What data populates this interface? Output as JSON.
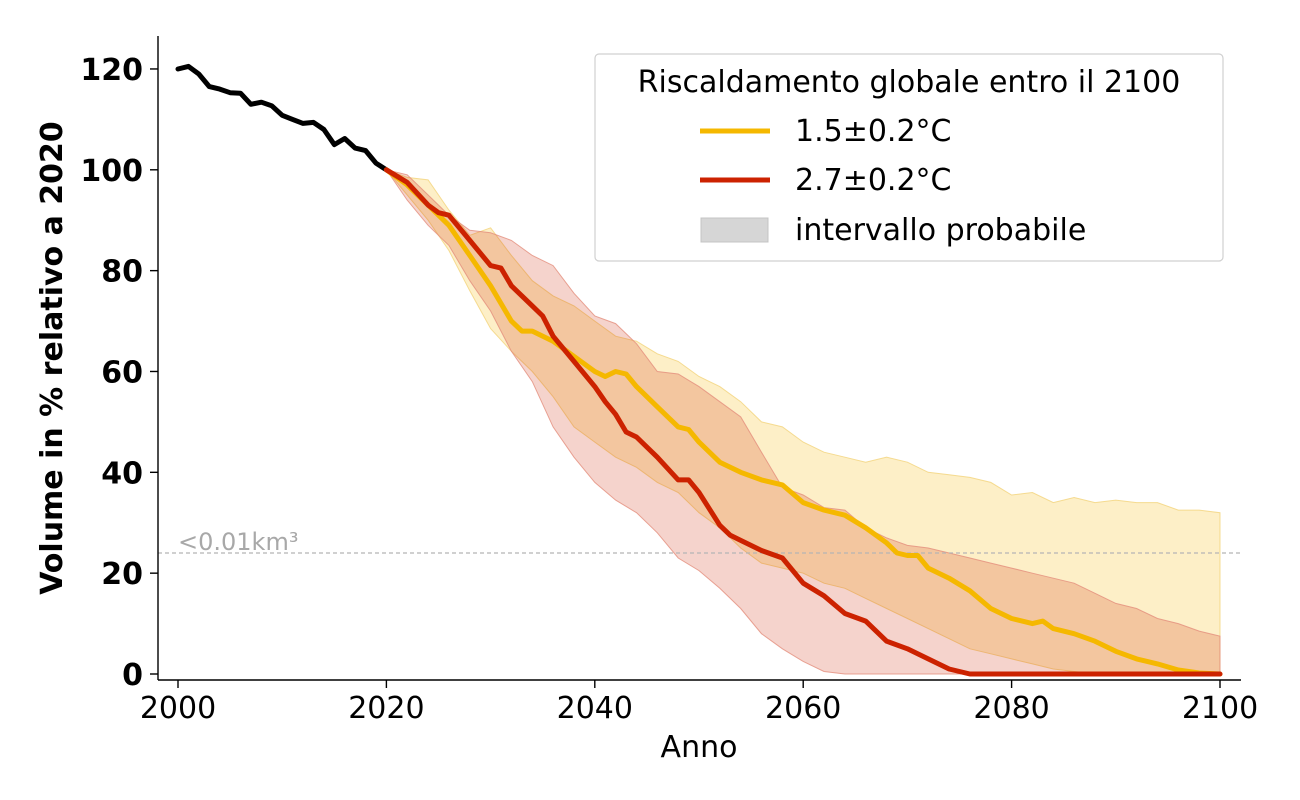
{
  "chart_data": {
    "type": "line",
    "xlabel": "Anno",
    "ylabel": "Volume in % relativo a 2020",
    "xlim": [
      2000,
      2100
    ],
    "ylim": [
      0,
      125
    ],
    "xticks": [
      2000,
      2020,
      2040,
      2060,
      2080,
      2100
    ],
    "yticks": [
      0,
      20,
      40,
      60,
      80,
      100,
      120
    ],
    "legend": {
      "title": "Riscaldamento globale entro il 2100",
      "placement": "top-right",
      "entries": [
        "1.5±0.2°C",
        "2.7±0.2°C",
        "intervallo probabile"
      ]
    },
    "threshold": {
      "y": 24,
      "label": "<0.01km³",
      "color": "#b5b5b5"
    },
    "colors": {
      "observed": "#000000",
      "ssp15": "#f5b800",
      "ssp27": "#cc2200",
      "range_legend": "#d6d6d6"
    },
    "observed": {
      "x": [
        2000,
        2001,
        2002,
        2003,
        2004,
        2005,
        2006,
        2007,
        2008,
        2009,
        2010,
        2011,
        2012,
        2013,
        2014,
        2015,
        2016,
        2017,
        2018,
        2019,
        2020
      ],
      "y": [
        120,
        120.5,
        119,
        116.5,
        116,
        115.3,
        115.2,
        113,
        113.4,
        112.7,
        110.8,
        110,
        109.2,
        109.4,
        108,
        105,
        106.2,
        104.3,
        103.8,
        101.3,
        100
      ]
    },
    "series": [
      {
        "name": "1.5±0.2°C",
        "x": [
          2020,
          2022,
          2024,
          2026,
          2028,
          2030,
          2032,
          2033,
          2034,
          2036,
          2038,
          2040,
          2041,
          2042,
          2043,
          2044,
          2046,
          2048,
          2049,
          2050,
          2052,
          2054,
          2056,
          2058,
          2060,
          2062,
          2064,
          2066,
          2068,
          2069,
          2070,
          2071,
          2072,
          2074,
          2076,
          2078,
          2080,
          2082,
          2083,
          2084,
          2086,
          2088,
          2090,
          2092,
          2094,
          2096,
          2098,
          2100
        ],
        "y": [
          100,
          97,
          93,
          89,
          83,
          77,
          70,
          68,
          68,
          66,
          63,
          60,
          59,
          60,
          59.5,
          57,
          53,
          49,
          48.5,
          46,
          42,
          40,
          38.5,
          37.5,
          34,
          32.5,
          31.5,
          29,
          26,
          24,
          23.5,
          23.5,
          21,
          19,
          16.5,
          13,
          11,
          10,
          10.5,
          9,
          8,
          6.5,
          4.5,
          3,
          2,
          0.8,
          0.2,
          0
        ]
      },
      {
        "name": "2.7±0.2°C",
        "x": [
          2020,
          2022,
          2024,
          2025,
          2026,
          2028,
          2030,
          2031,
          2032,
          2034,
          2035,
          2036,
          2038,
          2040,
          2041,
          2042,
          2043,
          2044,
          2046,
          2048,
          2049,
          2050,
          2052,
          2053,
          2054,
          2056,
          2058,
          2060,
          2062,
          2064,
          2066,
          2068,
          2070,
          2072,
          2074,
          2076,
          2080,
          2090,
          2100
        ],
        "y": [
          100,
          97.5,
          93,
          91.5,
          91,
          86,
          81,
          80.5,
          77,
          73,
          71,
          67,
          62,
          57,
          54,
          51.5,
          48,
          47,
          43,
          38.5,
          38.5,
          36,
          29.5,
          27.5,
          26.5,
          24.5,
          23,
          18,
          15.5,
          12,
          10.5,
          6.5,
          5,
          3,
          1,
          0,
          0,
          0,
          0
        ]
      }
    ],
    "ranges": [
      {
        "name": "1.5±0.2°C",
        "x": [
          2020,
          2022,
          2024,
          2026,
          2028,
          2030,
          2032,
          2034,
          2036,
          2038,
          2040,
          2042,
          2044,
          2046,
          2048,
          2050,
          2052,
          2054,
          2056,
          2058,
          2060,
          2062,
          2064,
          2066,
          2068,
          2070,
          2072,
          2074,
          2076,
          2078,
          2080,
          2082,
          2084,
          2086,
          2088,
          2090,
          2092,
          2094,
          2096,
          2098,
          2100
        ],
        "upper": [
          100,
          98.5,
          98,
          92,
          87,
          88.5,
          83,
          78,
          75,
          73,
          70,
          67,
          66,
          63.5,
          62,
          59,
          57,
          54,
          50,
          49,
          46,
          44,
          43,
          42,
          43,
          42,
          40,
          39.5,
          39,
          38,
          35.5,
          36,
          34,
          35,
          34,
          34.5,
          34,
          34,
          32.5,
          32.5,
          32
        ],
        "lower": [
          100,
          95,
          90,
          84,
          76,
          68.5,
          64,
          60,
          55,
          49,
          46,
          43,
          41,
          38,
          36,
          32,
          29,
          25,
          22,
          21,
          20,
          18,
          17,
          15,
          13,
          11,
          9,
          7,
          5,
          4,
          3,
          2,
          1,
          0.5,
          0,
          0,
          0,
          0,
          0,
          0,
          0
        ]
      },
      {
        "name": "2.7±0.2°C",
        "x": [
          2020,
          2022,
          2024,
          2026,
          2028,
          2030,
          2032,
          2034,
          2036,
          2038,
          2040,
          2042,
          2044,
          2046,
          2048,
          2050,
          2052,
          2054,
          2056,
          2058,
          2060,
          2062,
          2064,
          2066,
          2068,
          2070,
          2072,
          2074,
          2076,
          2078,
          2080,
          2082,
          2084,
          2086,
          2088,
          2090,
          2092,
          2094,
          2096,
          2098,
          2100
        ],
        "upper": [
          100,
          99,
          95,
          91,
          88,
          87.5,
          86,
          83,
          81,
          75.5,
          71,
          69.5,
          65.5,
          60,
          59.5,
          57,
          54,
          51,
          44,
          37,
          35.5,
          33,
          32.5,
          29,
          27,
          25.5,
          25,
          24,
          23,
          22,
          21,
          20,
          19,
          18,
          16,
          14,
          13,
          11,
          10,
          8.5,
          7.5
        ],
        "lower": [
          100,
          94,
          89,
          85,
          78,
          72,
          64,
          58,
          49,
          43,
          38,
          34.5,
          32,
          28,
          23,
          20.5,
          17,
          13,
          8,
          5,
          2.5,
          0.5,
          0,
          0,
          0,
          0,
          0,
          0,
          0,
          0,
          0,
          0,
          0,
          0,
          0,
          0,
          0,
          0,
          0,
          0,
          0
        ]
      }
    ]
  }
}
